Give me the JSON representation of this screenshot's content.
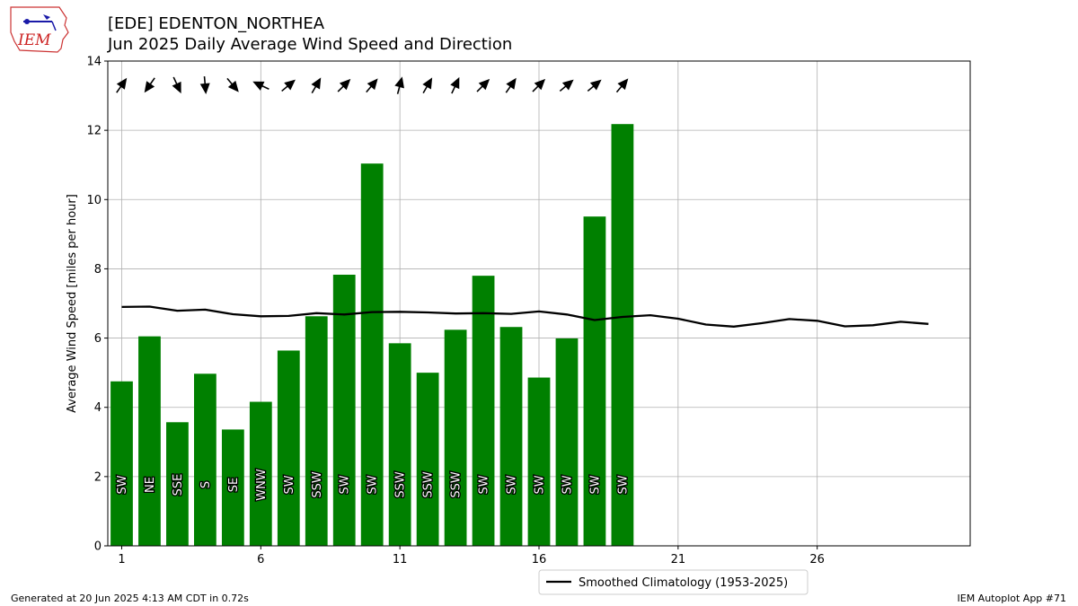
{
  "header": {
    "title": "[EDE] EDENTON_NORTHEA",
    "subtitle": "Jun 2025 Daily Average Wind Speed and Direction",
    "logo_text": "IEM"
  },
  "footer": {
    "left": "Generated at 20 Jun 2025 4:13 AM CDT in 0.72s",
    "right": "IEM Autoplot App #71"
  },
  "colors": {
    "bars": "#008000",
    "climatology": "#000000",
    "grid": "#b0b0b0"
  },
  "chart_data": {
    "type": "bar",
    "ylabel": "Average Wind Speed [miles per hour]",
    "xlabel": "",
    "xlim": [
      0.5,
      31.5
    ],
    "ylim": [
      0,
      14
    ],
    "xticks": [
      1,
      6,
      11,
      16,
      21,
      26
    ],
    "yticks": [
      0,
      2,
      4,
      6,
      8,
      10,
      12,
      14
    ],
    "grid": true,
    "legend": {
      "position": "bottom-center",
      "entries": [
        "Smoothed Climatology (1953-2025)"
      ]
    },
    "series": [
      {
        "type": "bar",
        "x": [
          1,
          2,
          3,
          4,
          5,
          6,
          7,
          8,
          9,
          10,
          11,
          12,
          13,
          14,
          15,
          16,
          17,
          18,
          19
        ],
        "values": [
          4.75,
          6.05,
          3.57,
          4.97,
          3.36,
          4.16,
          5.64,
          6.63,
          7.83,
          11.04,
          5.85,
          5.0,
          6.24,
          7.8,
          6.32,
          4.86,
          5.99,
          9.51,
          12.18
        ],
        "directions": [
          "SW",
          "NE",
          "SSE",
          "S",
          "SE",
          "WNW",
          "SW",
          "SSW",
          "SW",
          "SW",
          "SSW",
          "SSW",
          "SSW",
          "SW",
          "SW",
          "SW",
          "SW",
          "SW",
          "SW"
        ],
        "arrow_angles_deg": [
          35,
          215,
          155,
          175,
          140,
          295,
          50,
          30,
          45,
          40,
          15,
          30,
          25,
          45,
          35,
          45,
          50,
          50,
          40
        ]
      },
      {
        "type": "line",
        "name": "Smoothed Climatology (1953-2025)",
        "x": [
          1,
          2,
          3,
          4,
          5,
          6,
          7,
          8,
          9,
          10,
          11,
          12,
          13,
          14,
          15,
          16,
          17,
          18,
          19,
          20,
          21,
          22,
          23,
          24,
          25,
          26,
          27,
          28,
          29,
          30
        ],
        "values": [
          6.9,
          6.91,
          6.79,
          6.82,
          6.69,
          6.63,
          6.64,
          6.72,
          6.68,
          6.75,
          6.76,
          6.74,
          6.71,
          6.72,
          6.7,
          6.77,
          6.68,
          6.52,
          6.61,
          6.66,
          6.56,
          6.39,
          6.33,
          6.43,
          6.55,
          6.5,
          6.34,
          6.37,
          6.47,
          6.41
        ]
      }
    ]
  }
}
